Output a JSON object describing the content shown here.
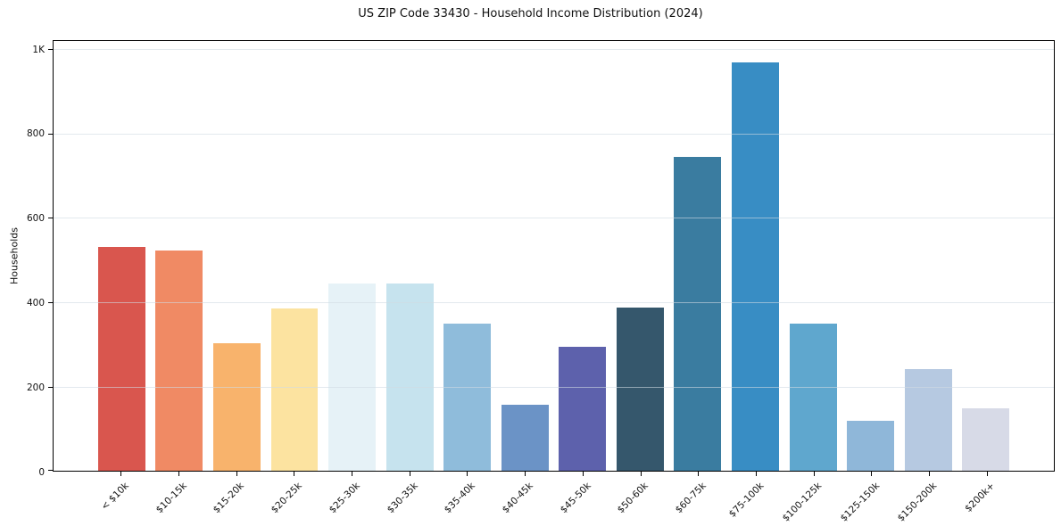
{
  "chart_data": {
    "type": "bar",
    "title": "US ZIP Code 33430 - Household Income Distribution (2024)",
    "xlabel": "",
    "ylabel": "Households",
    "ylim": [
      0,
      1020
    ],
    "grid": true,
    "legend": false,
    "yticks": [
      {
        "value": 0,
        "label": "0"
      },
      {
        "value": 200,
        "label": "200"
      },
      {
        "value": 400,
        "label": "400"
      },
      {
        "value": 600,
        "label": "600"
      },
      {
        "value": 800,
        "label": "800"
      },
      {
        "value": 1000,
        "label": "1K"
      }
    ],
    "categories": [
      "< $10k",
      "$10-15k",
      "$15-20k",
      "$20-25k",
      "$25-30k",
      "$30-35k",
      "$35-40k",
      "$40-45k",
      "$45-50k",
      "$50-60k",
      "$60-75k",
      "$75-100k",
      "$100-125k",
      "$125-150k",
      "$150-200k",
      "$200k+"
    ],
    "values": [
      531,
      523,
      302,
      386,
      445,
      444,
      350,
      157,
      294,
      388,
      745,
      970,
      349,
      119,
      242,
      148
    ],
    "bar_colors": [
      "#d9564e",
      "#f08a64",
      "#f8b36c",
      "#fce3a0",
      "#e6f2f7",
      "#c6e3ee",
      "#8fbcdb",
      "#6b93c6",
      "#5d61ac",
      "#35576c",
      "#3a7ca0",
      "#388dc4",
      "#5fa7ce",
      "#8fb7d9",
      "#b6c9e1",
      "#d7dae7"
    ],
    "styles": {
      "spine_color": "#000000",
      "grid_color": "#d0dae2",
      "grid_opacity": 0.6,
      "text_color": "#111111",
      "background": "#ffffff"
    }
  }
}
